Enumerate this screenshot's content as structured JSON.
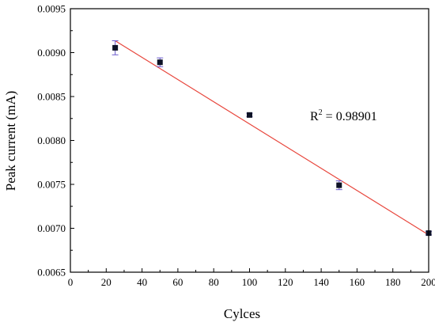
{
  "chart_data": {
    "type": "scatter",
    "title": "",
    "xlabel": "Cylces",
    "ylabel": "Peak current (mA)",
    "xlim": [
      0,
      200
    ],
    "ylim": [
      0.0065,
      0.0095
    ],
    "x_ticks": [
      0,
      20,
      40,
      60,
      80,
      100,
      120,
      140,
      160,
      180,
      200
    ],
    "y_ticks": [
      0.0065,
      0.007,
      0.0075,
      0.008,
      0.0085,
      0.009,
      0.0095
    ],
    "x_tick_labels": [
      "0",
      "20",
      "40",
      "60",
      "80",
      "100",
      "120",
      "140",
      "160",
      "180",
      "200"
    ],
    "y_tick_labels": [
      "0.0065",
      "0.0070",
      "0.0075",
      "0.0080",
      "0.0085",
      "0.0090",
      "0.0095"
    ],
    "grid": false,
    "series": [
      {
        "x": [
          25,
          50,
          100,
          150,
          200
        ],
        "y": [
          0.009055,
          0.00889,
          0.00829,
          0.00749,
          0.006945
        ],
        "error": [
          8e-05,
          5e-05,
          2e-05,
          5e-05,
          2e-05
        ]
      }
    ],
    "fit_line": {
      "x": [
        25,
        200
      ],
      "y": [
        0.009135,
        0.006925
      ]
    },
    "annotation": {
      "base": "R",
      "sup": "2",
      "rest": " = 0.98901"
    },
    "colors": {
      "marker": "#0d1226",
      "errorbar": "#6a5acd",
      "fit": "#e8463c",
      "axis": "#000000"
    }
  }
}
